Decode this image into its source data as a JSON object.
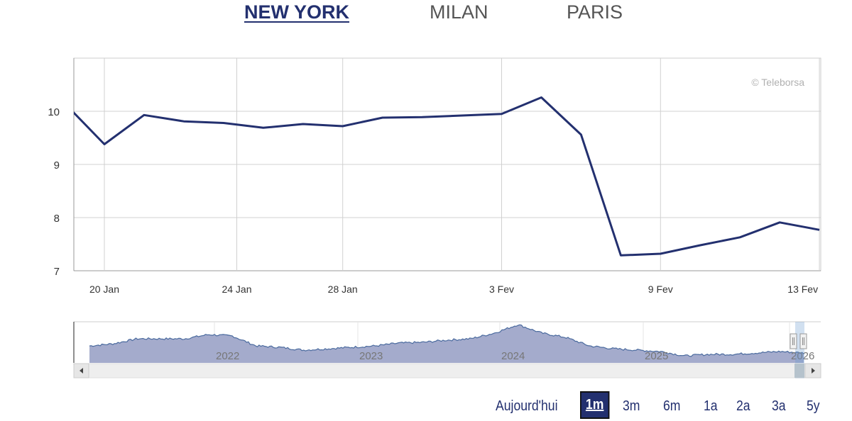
{
  "tabs": [
    {
      "label": "NEW YORK",
      "active": true
    },
    {
      "label": "MILAN",
      "active": false
    },
    {
      "label": "PARIS",
      "active": false
    }
  ],
  "chart_data": {
    "type": "line",
    "credit": "© Teleborsa",
    "x_axis_type": "trading-day ordinal",
    "ylim": [
      7,
      11
    ],
    "y_ticks": [
      7,
      8,
      9,
      10
    ],
    "grid": true,
    "x_ticks": [
      {
        "label": "20 Jan",
        "date": "2026-01-20"
      },
      {
        "label": "24 Jan",
        "date": "2026-01-24"
      },
      {
        "label": "28 Jan",
        "date": "2026-01-28"
      },
      {
        "label": "3 Fev",
        "date": "2026-02-03"
      },
      {
        "label": "9 Fev",
        "date": "2026-02-09"
      },
      {
        "label": "13 Fev",
        "date": "2026-02-13"
      }
    ],
    "series": [
      {
        "color": "#23306f",
        "points": [
          [
            "2026-01-16",
            10.15
          ],
          [
            "2026-01-20",
            9.38
          ],
          [
            "2026-01-21",
            9.93
          ],
          [
            "2026-01-22",
            9.81
          ],
          [
            "2026-01-23",
            9.78
          ],
          [
            "2026-01-26",
            9.69
          ],
          [
            "2026-01-27",
            9.76
          ],
          [
            "2026-01-28",
            9.72
          ],
          [
            "2026-01-29",
            9.88
          ],
          [
            "2026-01-30",
            9.89
          ],
          [
            "2026-02-02",
            9.92
          ],
          [
            "2026-02-03",
            9.95
          ],
          [
            "2026-02-04",
            10.26
          ],
          [
            "2026-02-05",
            9.56
          ],
          [
            "2026-02-06",
            7.29
          ],
          [
            "2026-02-09",
            7.32
          ],
          [
            "2026-02-10",
            7.48
          ],
          [
            "2026-02-11",
            7.63
          ],
          [
            "2026-02-12",
            7.91
          ],
          [
            "2026-02-13",
            7.77
          ]
        ]
      }
    ],
    "navigator": {
      "year_labels": [
        "2022",
        "2023",
        "2024",
        "2025",
        "2026"
      ],
      "values": [
        13.3,
        15,
        18.9,
        18.9,
        18.9,
        22.2,
        21.1,
        13.3,
        12.2,
        10,
        11.1,
        12.2,
        13.3,
        15.5,
        16.1,
        17.8,
        18.9,
        23.3,
        30,
        23.3,
        20,
        13.3,
        11.1,
        10,
        8.9,
        5.5,
        6.7,
        6.7,
        7.8,
        8.9,
        7.8
      ],
      "selected_range": "1m",
      "fill": "#a4abcc",
      "line": "#4a6a9e"
    }
  },
  "ranges": [
    {
      "label": "Aujourd'hui",
      "active": false
    },
    {
      "label": "1m",
      "active": true
    },
    {
      "label": "3m",
      "active": false
    },
    {
      "label": "6m",
      "active": false
    },
    {
      "label": "1a",
      "active": false
    },
    {
      "label": "2a",
      "active": false
    },
    {
      "label": "3a",
      "active": false
    },
    {
      "label": "5y",
      "active": false
    }
  ]
}
